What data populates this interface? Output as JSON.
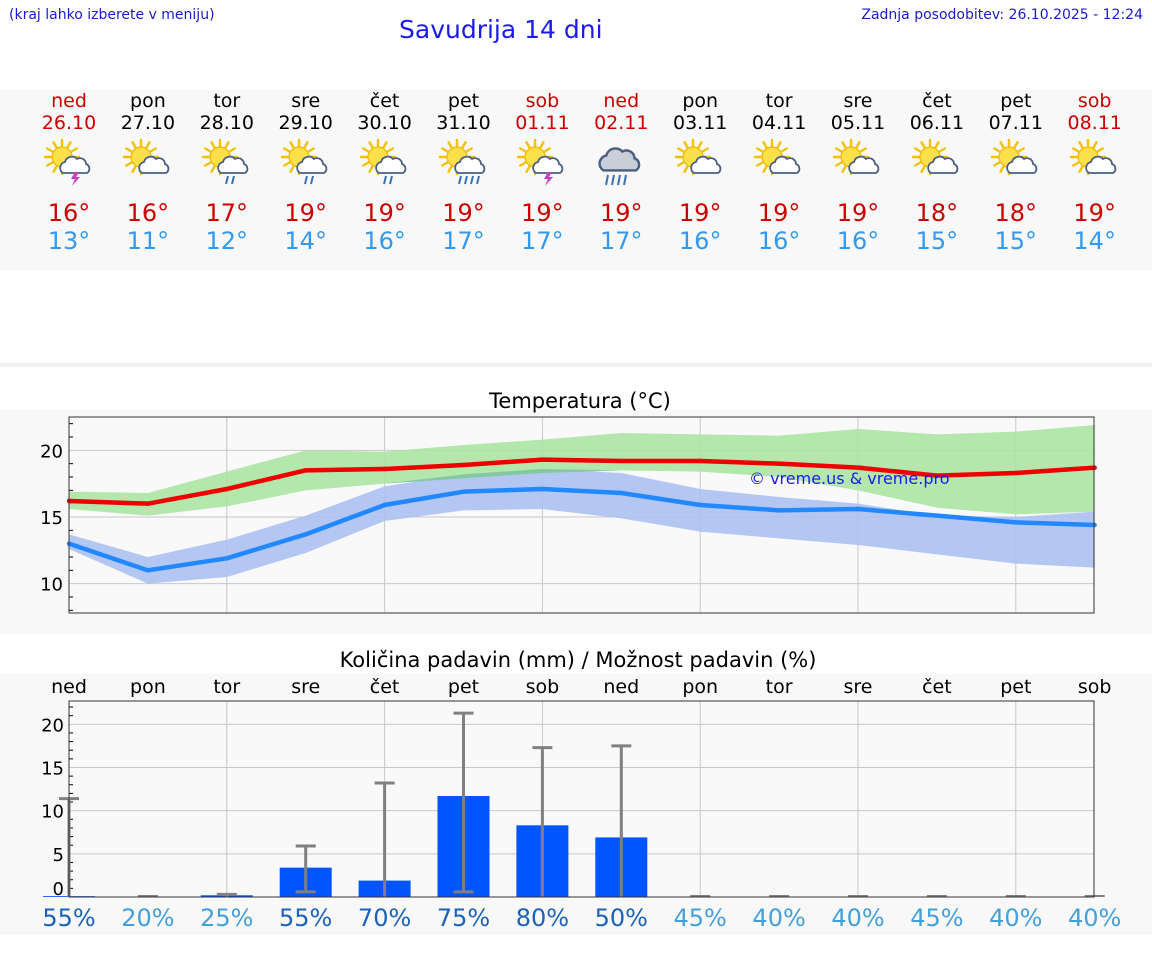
{
  "header": {
    "menu_hint": "(kraj lahko izberete v meniju)",
    "title": "Savudrija 14 dni",
    "updated": "Zadnja posodobitev: 26.10.2025 - 12:24"
  },
  "forecast": {
    "days": [
      {
        "name": "ned",
        "date": "26.10",
        "weekend": true,
        "icon": "sun-cloud-thunder-icon",
        "tmax": "16°",
        "tmin": "13°"
      },
      {
        "name": "pon",
        "date": "27.10",
        "weekend": false,
        "icon": "sun-cloud-icon",
        "tmax": "16°",
        "tmin": "11°"
      },
      {
        "name": "tor",
        "date": "28.10",
        "weekend": false,
        "icon": "sun-cloud-rain-icon",
        "tmax": "17°",
        "tmin": "12°"
      },
      {
        "name": "sre",
        "date": "29.10",
        "weekend": false,
        "icon": "sun-cloud-rain-icon",
        "tmax": "19°",
        "tmin": "14°"
      },
      {
        "name": "čet",
        "date": "30.10",
        "weekend": false,
        "icon": "sun-cloud-rain-icon",
        "tmax": "19°",
        "tmin": "16°"
      },
      {
        "name": "pet",
        "date": "31.10",
        "weekend": false,
        "icon": "sun-cloud-heavy-rain-icon",
        "tmax": "19°",
        "tmin": "17°"
      },
      {
        "name": "sob",
        "date": "01.11",
        "weekend": true,
        "icon": "sun-cloud-thunder-icon",
        "tmax": "19°",
        "tmin": "17°"
      },
      {
        "name": "ned",
        "date": "02.11",
        "weekend": true,
        "icon": "cloud-heavy-rain-icon",
        "tmax": "19°",
        "tmin": "17°"
      },
      {
        "name": "pon",
        "date": "03.11",
        "weekend": false,
        "icon": "sun-cloud-icon",
        "tmax": "19°",
        "tmin": "16°"
      },
      {
        "name": "tor",
        "date": "04.11",
        "weekend": false,
        "icon": "sun-cloud-icon",
        "tmax": "19°",
        "tmin": "16°"
      },
      {
        "name": "sre",
        "date": "05.11",
        "weekend": false,
        "icon": "sun-cloud-icon",
        "tmax": "19°",
        "tmin": "16°"
      },
      {
        "name": "čet",
        "date": "06.11",
        "weekend": false,
        "icon": "sun-cloud-icon",
        "tmax": "18°",
        "tmin": "15°"
      },
      {
        "name": "pet",
        "date": "07.11",
        "weekend": false,
        "icon": "sun-cloud-icon",
        "tmax": "18°",
        "tmin": "15°"
      },
      {
        "name": "sob",
        "date": "08.11",
        "weekend": true,
        "icon": "sun-cloud-icon",
        "tmax": "19°",
        "tmin": "14°"
      }
    ]
  },
  "colors": {
    "max_line": "#ee0000",
    "min_line": "#2288ff",
    "max_band": "#a8e4a0",
    "min_band": "#aabff0",
    "overlap_band": "#7ec4a4",
    "bar": "#0055ff",
    "whisker": "#808080",
    "prob_strong": "#1c62b8",
    "prob_light": "#44a0d8"
  },
  "chart_data": [
    {
      "type": "line",
      "title": "Temperatura (°C)",
      "watermark": "© vreme.us & vreme.pro",
      "categories": [
        "ned",
        "pon",
        "tor",
        "sre",
        "čet",
        "pet",
        "sob",
        "ned",
        "pon",
        "tor",
        "sre",
        "čet",
        "pet",
        "sob"
      ],
      "ylim": [
        7.8,
        22.5
      ],
      "yticks": [
        10,
        15,
        20
      ],
      "series": [
        {
          "name": "max",
          "values": [
            16.2,
            16.0,
            17.1,
            18.5,
            18.6,
            18.9,
            19.3,
            19.2,
            19.2,
            19.0,
            18.7,
            18.1,
            18.3,
            18.7
          ],
          "band_low": [
            15.6,
            15.1,
            15.8,
            17.0,
            17.5,
            17.9,
            18.3,
            18.5,
            18.4,
            18.0,
            17.0,
            15.7,
            15.2,
            15.4
          ],
          "band_high": [
            16.9,
            16.8,
            18.4,
            20.0,
            19.9,
            20.4,
            20.8,
            21.3,
            21.2,
            21.1,
            21.6,
            21.2,
            21.4,
            21.9
          ]
        },
        {
          "name": "min",
          "values": [
            13.0,
            11.0,
            11.9,
            13.7,
            15.9,
            16.9,
            17.1,
            16.8,
            15.9,
            15.5,
            15.6,
            15.1,
            14.6,
            14.4
          ],
          "band_low": [
            12.6,
            10.0,
            10.5,
            12.3,
            14.7,
            15.5,
            15.6,
            14.9,
            13.9,
            13.4,
            12.9,
            12.2,
            11.5,
            11.2
          ],
          "band_high": [
            13.7,
            12.0,
            13.3,
            15.1,
            17.3,
            18.2,
            18.6,
            18.3,
            17.1,
            16.5,
            16.0,
            15.1,
            15.0,
            15.4
          ]
        }
      ]
    },
    {
      "type": "bar",
      "title": "Količina padavin (mm) / Možnost padavin (%)",
      "categories": [
        "ned",
        "pon",
        "tor",
        "sre",
        "čet",
        "pet",
        "sob",
        "ned",
        "pon",
        "tor",
        "sre",
        "čet",
        "pet",
        "sob"
      ],
      "ylim": [
        0,
        22.7
      ],
      "yticks": [
        0,
        5,
        10,
        15,
        20
      ],
      "values": [
        0.1,
        0,
        0.2,
        3.4,
        1.9,
        11.7,
        8.3,
        6.9,
        0,
        0,
        0,
        0,
        0,
        0
      ],
      "error_low": [
        0,
        0,
        0,
        0.6,
        0,
        0.6,
        0,
        0,
        0,
        0,
        0,
        0,
        0,
        0
      ],
      "error_high": [
        11.4,
        0,
        0.3,
        5.9,
        13.2,
        21.3,
        17.3,
        17.5,
        0,
        0,
        0,
        0,
        0,
        0
      ],
      "probabilities": [
        "55%",
        "20%",
        "25%",
        "55%",
        "70%",
        "75%",
        "80%",
        "50%",
        "45%",
        "40%",
        "40%",
        "45%",
        "40%",
        "40%"
      ],
      "prob_strong": [
        true,
        false,
        false,
        true,
        true,
        true,
        true,
        true,
        false,
        false,
        false,
        false,
        false,
        false
      ]
    }
  ]
}
